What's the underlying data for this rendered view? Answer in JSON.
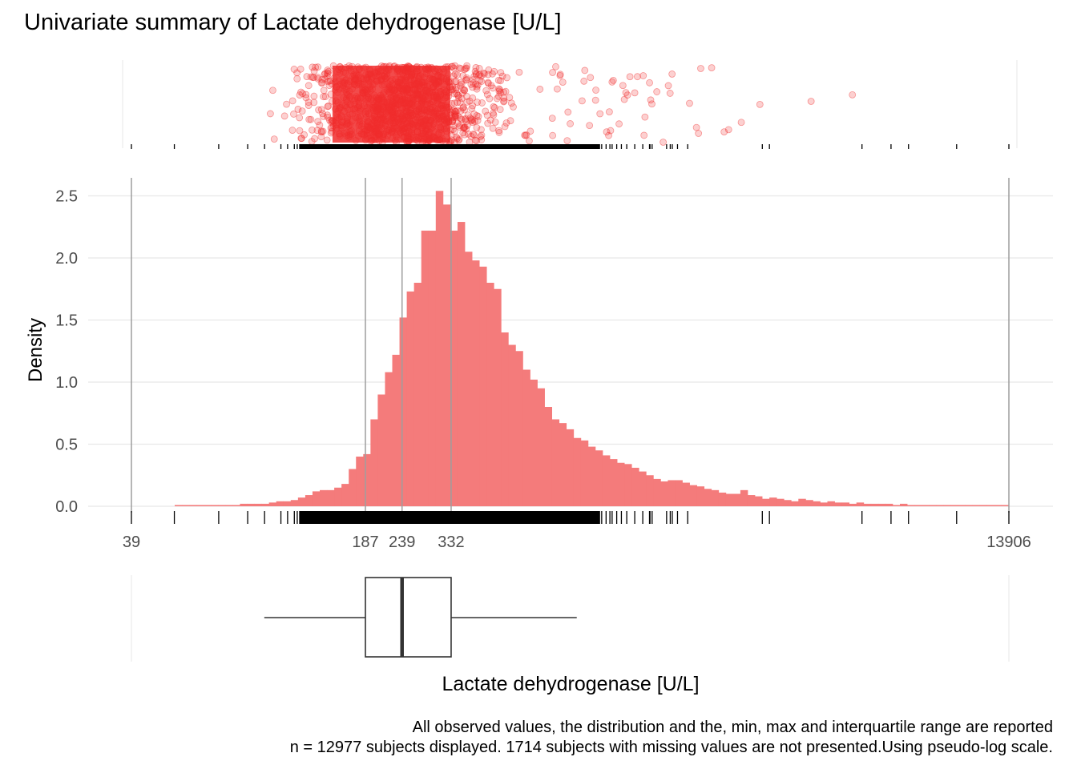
{
  "title": "Univariate summary of Lactate dehydrogenase [U/L]",
  "caption": {
    "line1": "All observed values, the distribution and the, min, max and interquartile range are reported",
    "line2": "n = 12977 subjects displayed. 1714 subjects with missing values are not presented.Using pseudo-log scale."
  },
  "colors": {
    "accent": "#F02B2B",
    "bars": "#F47B7B",
    "ref_line": "#9E9E9E",
    "grid": "#E8E8E8"
  },
  "chart_data": {
    "type": "bar",
    "title": "Univariate summary of Lactate dehydrogenase [U/L]",
    "xlabel": "Lactate dehydrogenase [U/L]",
    "ylabel": "Density",
    "x_scale": "pseudo-log",
    "xlim": [
      39,
      13906
    ],
    "ylim": [
      0,
      2.6
    ],
    "grid": true,
    "y_ticks": [
      "0.0",
      "0.5",
      "1.0",
      "1.5",
      "2.0",
      "2.5"
    ],
    "x_tick_labels": [
      "39",
      "187",
      "239",
      "332",
      "13906"
    ],
    "summary": {
      "min": 39,
      "q1": 187,
      "median": 239,
      "q3": 332,
      "max": 13906
    },
    "boxplot": {
      "whisker_low": 95,
      "q1": 187,
      "median": 239,
      "q3": 332,
      "whisker_high": 770
    },
    "histogram": {
      "x_start": 76,
      "density": [
        0.01,
        0.01,
        0.01,
        0.01,
        0.01,
        0.01,
        0.01,
        0.01,
        0.01,
        0.02,
        0.02,
        0.02,
        0.02,
        0.03,
        0.04,
        0.04,
        0.05,
        0.07,
        0.09,
        0.12,
        0.13,
        0.13,
        0.15,
        0.18,
        0.3,
        0.4,
        0.42,
        0.7,
        0.9,
        1.08,
        1.22,
        1.52,
        1.73,
        1.8,
        2.22,
        2.22,
        2.54,
        2.43,
        2.22,
        2.29,
        2.05,
        1.98,
        1.93,
        1.8,
        1.75,
        1.4,
        1.3,
        1.25,
        1.1,
        1.02,
        0.95,
        0.8,
        0.7,
        0.67,
        0.62,
        0.55,
        0.53,
        0.48,
        0.45,
        0.41,
        0.38,
        0.35,
        0.34,
        0.31,
        0.28,
        0.25,
        0.22,
        0.2,
        0.21,
        0.21,
        0.19,
        0.17,
        0.16,
        0.14,
        0.13,
        0.11,
        0.1,
        0.1,
        0.13,
        0.09,
        0.08,
        0.06,
        0.07,
        0.06,
        0.05,
        0.04,
        0.06,
        0.05,
        0.04,
        0.03,
        0.04,
        0.03,
        0.03,
        0.02,
        0.03,
        0.02,
        0.02,
        0.02,
        0.02,
        0.01,
        0.02,
        0.01,
        0.01,
        0.01,
        0.01,
        0.01,
        0.01,
        0.01,
        0.01,
        0.01,
        0.01,
        0.01,
        0.01,
        0.01,
        0.01,
        0.01,
        0.01,
        0.01,
        0.01,
        0.005,
        0.005,
        0.005,
        0.005,
        0.005,
        0.005,
        0.005,
        0.005,
        0.005,
        0.005,
        0.005,
        0.005,
        0.005,
        0.005,
        0.005,
        0.005,
        0.005,
        0.005,
        0.005,
        0.005,
        0.005
      ]
    },
    "observed_values_panel": "jittered points (top) and rug ticks of all 12977 observed values"
  }
}
